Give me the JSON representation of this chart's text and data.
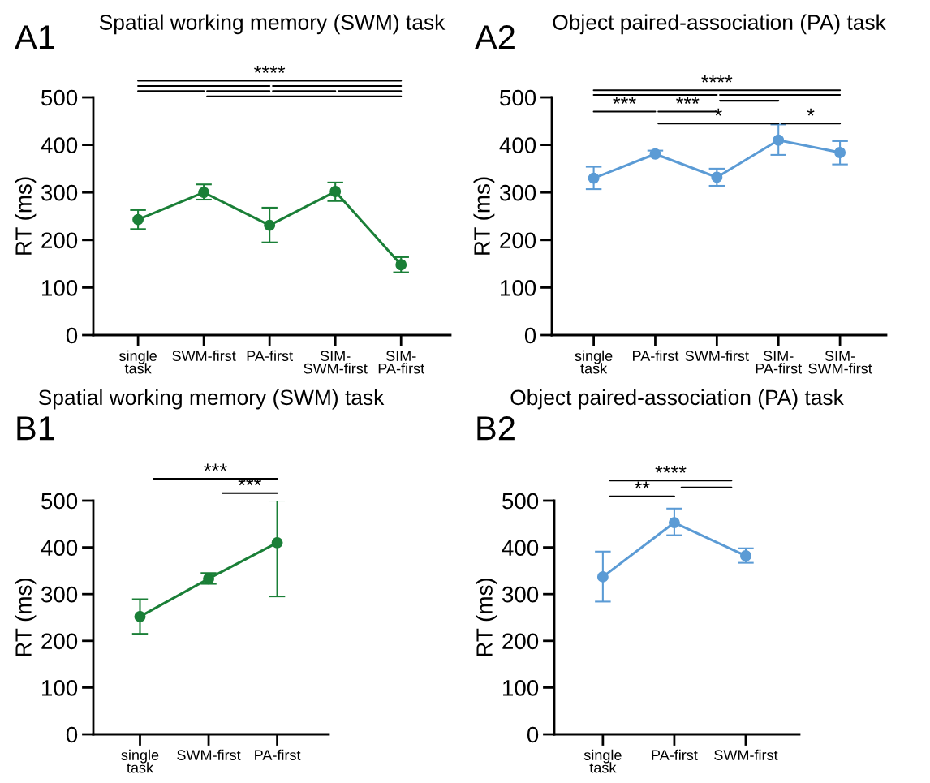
{
  "chart_data": [
    {
      "type": "line",
      "title": "Spatial working memory (SWM) task",
      "ylabel": "RT (ms)",
      "categories": [
        "single\ntask",
        "SWM-first",
        "PA-first",
        "SIM-\nSWM-first",
        "SIM-\nPA-first"
      ],
      "series": [
        {
          "color": "#1a7f37",
          "values": [
            243,
            300,
            231,
            302,
            148
          ],
          "errors": [
            [
              223,
              263
            ],
            [
              285,
              317
            ],
            [
              195,
              268
            ],
            [
              282,
              321
            ],
            [
              132,
              164
            ]
          ]
        }
      ],
      "ylim": [
        0,
        500
      ],
      "yticks": [
        0,
        100,
        200,
        300,
        400,
        500
      ],
      "marker": "circle",
      "grid": false,
      "legend": false,
      "annotations": [
        "A1",
        "****"
      ]
    },
    {
      "type": "line",
      "title": "Object paired-association (PA) task",
      "ylabel": "RT (ms)",
      "categories": [
        "single\ntask",
        "PA-first",
        "SWM-first",
        "SIM-\nPA-first",
        "SIM-\nSWM-first"
      ],
      "series": [
        {
          "color": "#5b9bd5",
          "values": [
            330,
            381,
            332,
            410,
            384
          ],
          "errors": [
            [
              307,
              354
            ],
            [
              375,
              388
            ],
            [
              314,
              350
            ],
            [
              379,
              443
            ],
            [
              359,
              408
            ]
          ]
        }
      ],
      "ylim": [
        0,
        500
      ],
      "yticks": [
        0,
        100,
        200,
        300,
        400,
        500
      ],
      "marker": "circle",
      "grid": false,
      "legend": false,
      "annotations": [
        "A2",
        "****",
        "***",
        "***",
        "*",
        "*"
      ]
    },
    {
      "type": "line",
      "title": "Spatial working memory (SWM) task",
      "ylabel": "RT (ms)",
      "categories": [
        "single\ntask",
        "SWM-first",
        "PA-first"
      ],
      "series": [
        {
          "color": "#1a7f37",
          "values": [
            252,
            333,
            410
          ],
          "errors": [
            [
              215,
              289
            ],
            [
              322,
              345
            ],
            [
              295,
              500
            ]
          ]
        }
      ],
      "ylim": [
        0,
        500
      ],
      "yticks": [
        0,
        100,
        200,
        300,
        400,
        500
      ],
      "marker": "circle",
      "grid": false,
      "legend": false,
      "annotations": [
        "B1",
        "***",
        "***"
      ]
    },
    {
      "type": "line",
      "title": "Object paired-association (PA) task",
      "ylabel": "RT (ms)",
      "categories": [
        "single\ntask",
        "PA-first",
        "SWM-first"
      ],
      "series": [
        {
          "color": "#5b9bd5",
          "values": [
            337,
            453,
            382
          ],
          "errors": [
            [
              284,
              391
            ],
            [
              426,
              483
            ],
            [
              367,
              398
            ]
          ]
        }
      ],
      "ylim": [
        0,
        500
      ],
      "yticks": [
        0,
        100,
        200,
        300,
        400,
        500
      ],
      "marker": "circle",
      "grid": false,
      "legend": false,
      "annotations": [
        "B2",
        "****",
        "**"
      ]
    }
  ]
}
